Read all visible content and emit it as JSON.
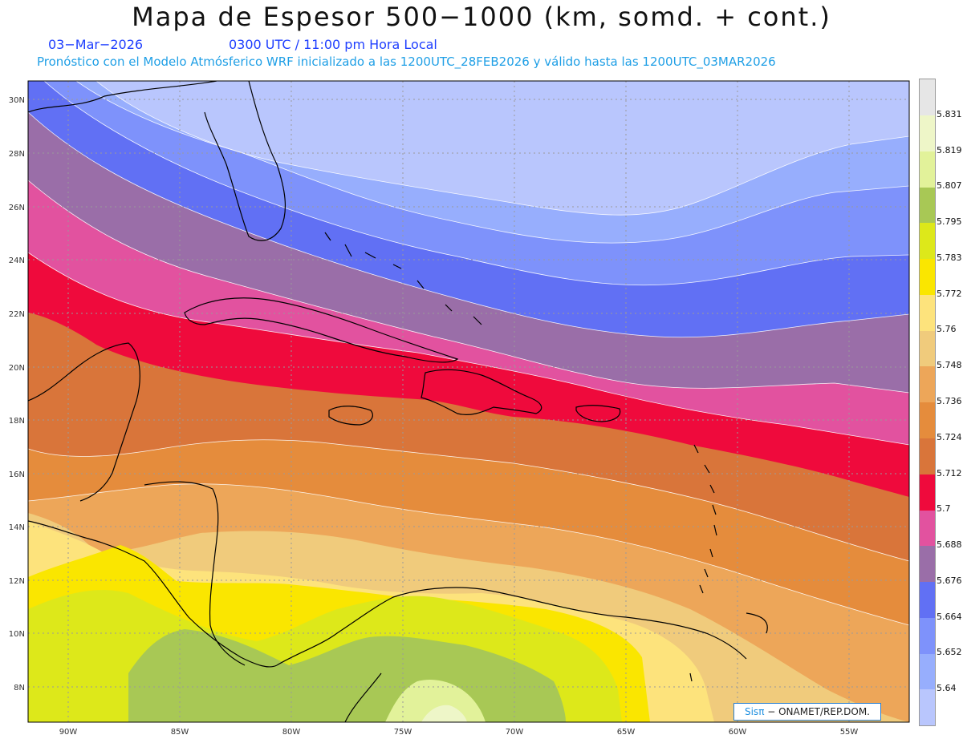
{
  "header": {
    "title": "Mapa de Espesor 500−1000 (km, somd. + cont.)",
    "date": "03−Mar−2026",
    "time": "0300 UTC / 11:00 pm Hora Local",
    "subtitle": "Pronóstico con el Modelo Atmósferico WRF inicializado a las 1200UTC_28FEB2026 y válido hasta las  1200UTC_03MAR2026"
  },
  "map": {
    "lat_labels": [
      "30N",
      "28N",
      "26N",
      "24N",
      "22N",
      "20N",
      "18N",
      "16N",
      "14N",
      "12N",
      "10N",
      "8N"
    ],
    "lon_labels": [
      "90W",
      "85W",
      "80W",
      "75W",
      "70W",
      "65W",
      "60W",
      "55W"
    ],
    "lat_range": [
      6.7,
      30.7
    ],
    "lon_range": [
      92,
      52.5
    ]
  },
  "colorbar": {
    "levels": [
      "5.64",
      "5.652",
      "5.664",
      "5.676",
      "5.688",
      "5.7",
      "5.712",
      "5.724",
      "5.736",
      "5.748",
      "5.76",
      "5.772",
      "5.783",
      "5.795",
      "5.807",
      "5.819",
      "5.831"
    ],
    "colors": [
      "#b9c6fd",
      "#97aefd",
      "#7e92fb",
      "#6170f4",
      "#9a6ea8",
      "#e2529f",
      "#ef0a3c",
      "#d9753a",
      "#e58c3c",
      "#eda659",
      "#f0cb7c",
      "#fde37c",
      "#fae600",
      "#dde81a",
      "#a8c855",
      "#e2f29a",
      "#eef6c8",
      "#e6e6e6"
    ]
  },
  "credit": {
    "brand": "Sisπ",
    "text": " − ONAMET/REP.DOM."
  }
}
